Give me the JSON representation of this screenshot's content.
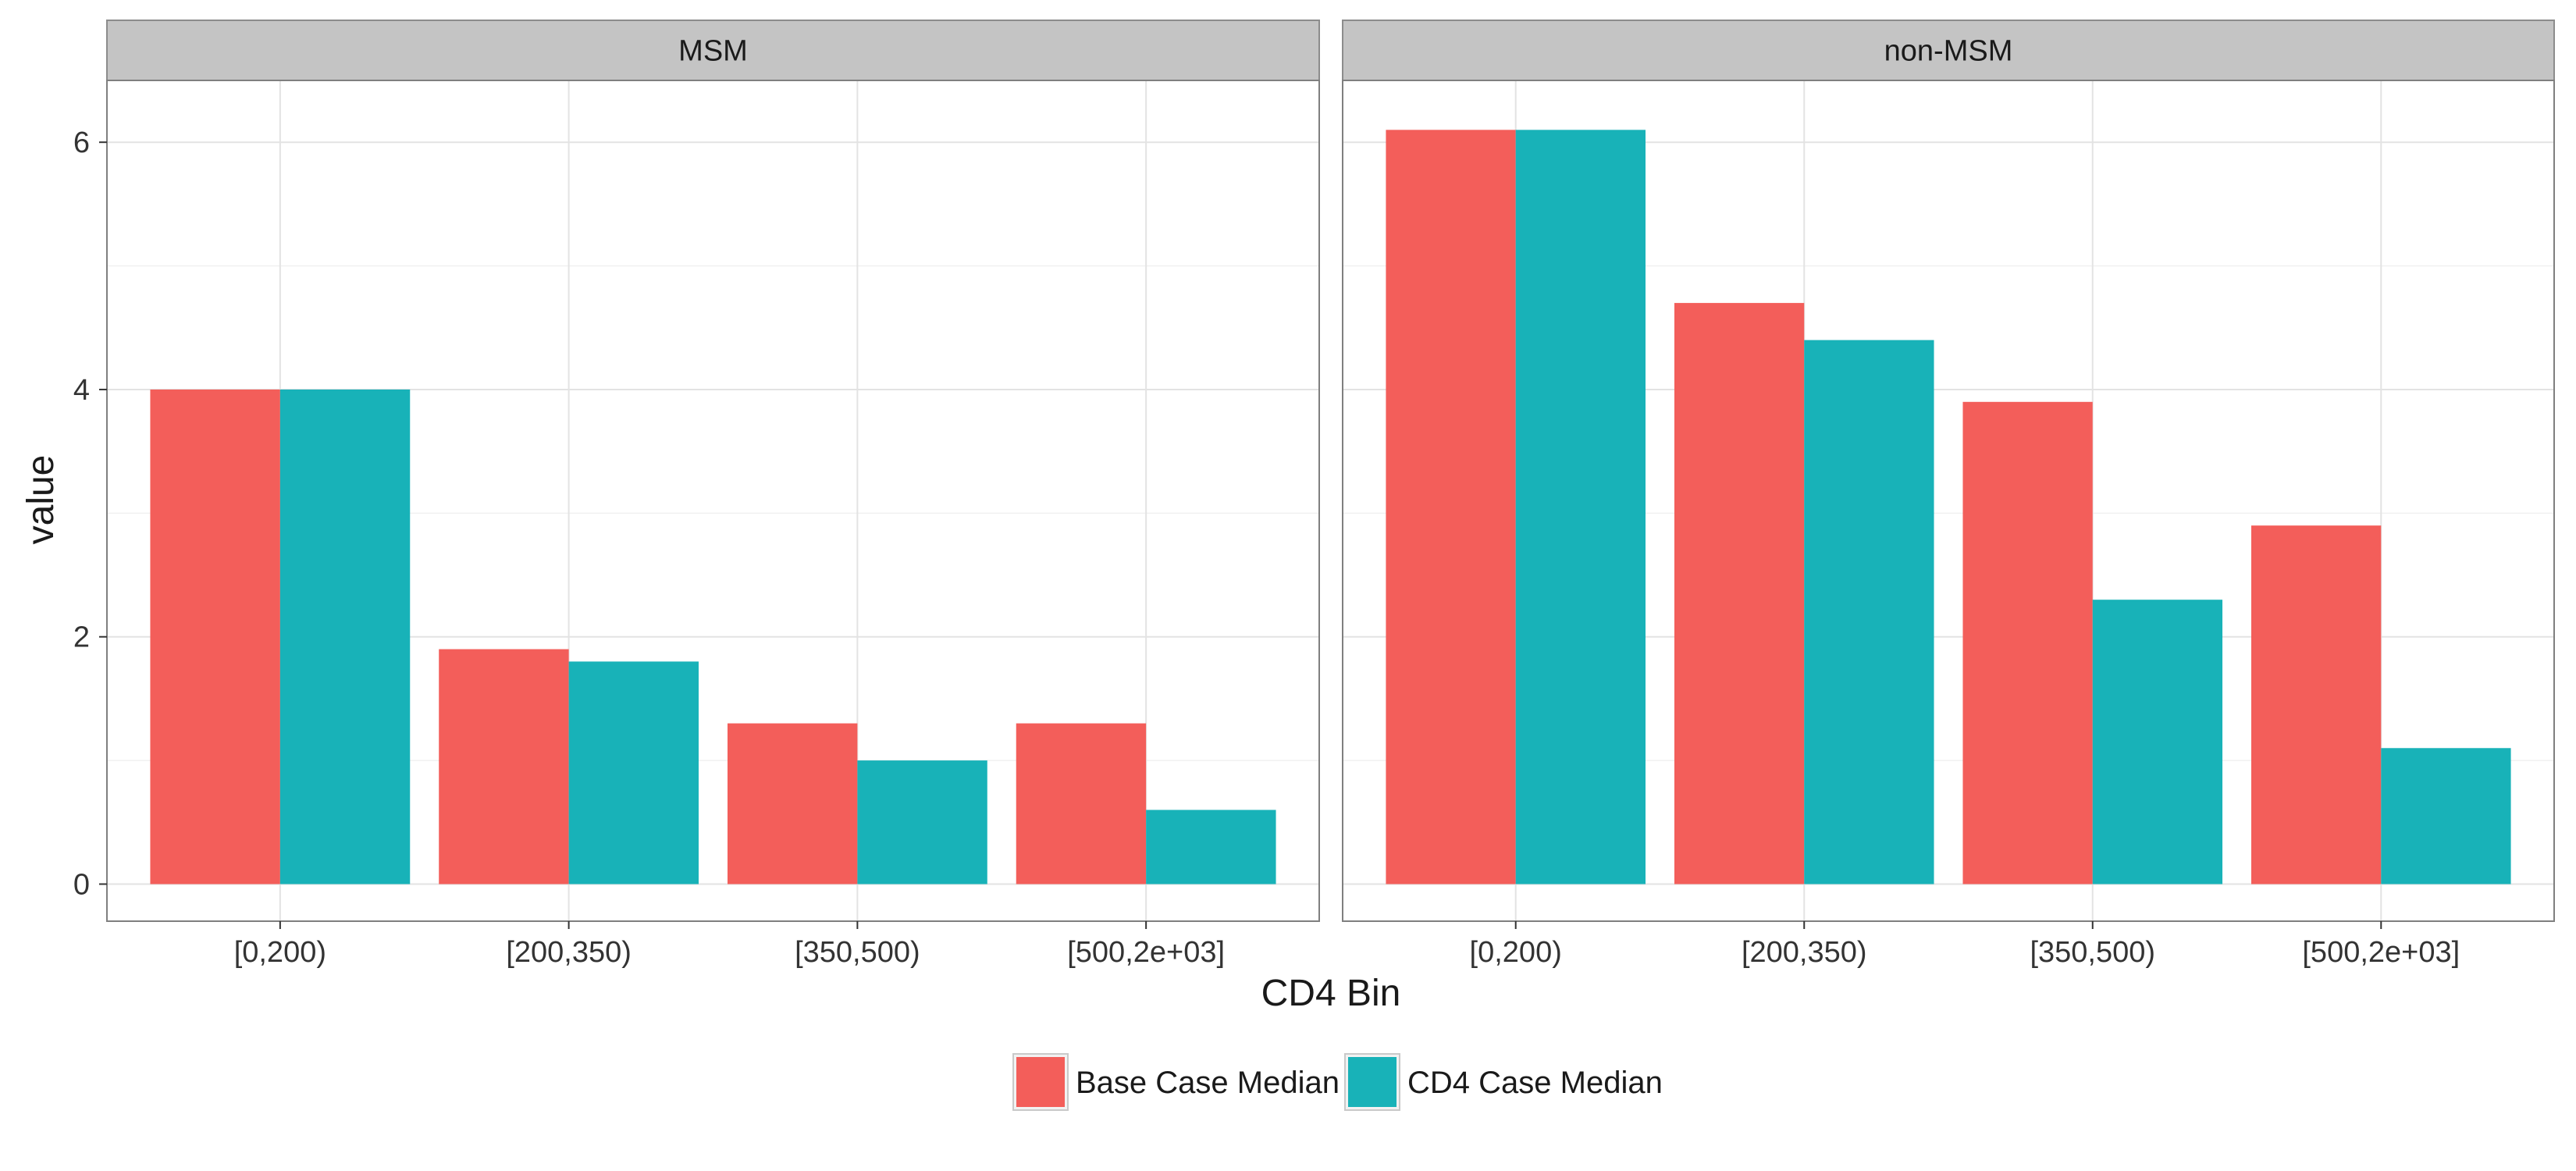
{
  "chart_data": {
    "type": "bar",
    "ylabel": "value",
    "xlabel": "CD4 Bin",
    "ylim": [
      -0.3,
      6.5
    ],
    "y_ticks": [
      "0",
      "2",
      "4",
      "6"
    ],
    "grid": true,
    "legend_position": "bottom",
    "categories": [
      "[0,200)",
      "[200,350)",
      "[350,500)",
      "[500,2e+03]"
    ],
    "facets": [
      {
        "title": "MSM",
        "series": [
          {
            "name": "Base Case Median",
            "color": "#f35e5a",
            "values": [
              4.0,
              1.9,
              1.3,
              1.3
            ]
          },
          {
            "name": "CD4 Case Median",
            "color": "#18b2b8",
            "values": [
              4.0,
              1.8,
              1.0,
              0.6
            ]
          }
        ]
      },
      {
        "title": "non-MSM",
        "series": [
          {
            "name": "Base Case Median",
            "color": "#f35e5a",
            "values": [
              6.1,
              4.7,
              3.9,
              2.9
            ]
          },
          {
            "name": "CD4 Case Median",
            "color": "#18b2b8",
            "values": [
              6.1,
              4.4,
              2.3,
              1.1
            ]
          }
        ]
      }
    ],
    "legend": [
      {
        "label": "Base Case Median",
        "color": "#f35e5a"
      },
      {
        "label": "CD4 Case Median",
        "color": "#18b2b8"
      }
    ]
  }
}
